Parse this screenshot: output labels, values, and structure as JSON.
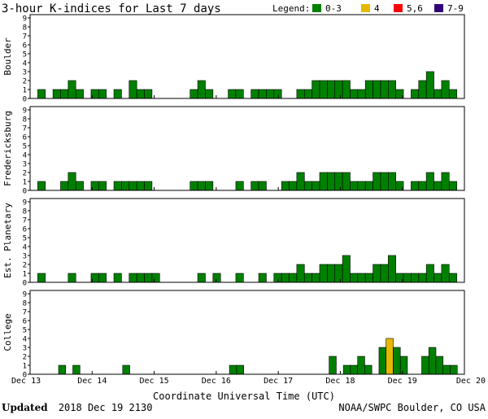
{
  "title": "3-hour K-indices for Last 7 days",
  "legend": {
    "label": "Legend:",
    "items": [
      {
        "label": "0-3",
        "color": "#008000"
      },
      {
        "label": "4",
        "color": "#e6b800"
      },
      {
        "label": "5,6",
        "color": "#ff0000"
      },
      {
        "label": "7-9",
        "color": "#330077"
      }
    ]
  },
  "colors": {
    "low": "#008000",
    "mid": "#e6b800",
    "high": "#ff0000",
    "extreme": "#330077",
    "outline": "#000000"
  },
  "chart_data": {
    "type": "bar",
    "ylim": [
      0,
      9
    ],
    "y_ticks": [
      "0",
      "1",
      "2",
      "3",
      "4",
      "5",
      "6",
      "7",
      "8",
      "9"
    ],
    "x_tick_labels": [
      "Dec 13",
      "Dec 14",
      "Dec 15",
      "Dec 16",
      "Dec 17",
      "Dec 18",
      "Dec 19",
      "Dec 20"
    ],
    "xlabel": "Coordinate Universal Time (UTC)",
    "legend_placement": "top-right",
    "panels": [
      {
        "name": "Boulder",
        "values": [
          0,
          1,
          0,
          1,
          1,
          2,
          1,
          0,
          1,
          1,
          0,
          1,
          0,
          2,
          1,
          1,
          0,
          0,
          0,
          0,
          0,
          1,
          2,
          1,
          0,
          0,
          1,
          1,
          0,
          1,
          1,
          1,
          1,
          0,
          0,
          1,
          1,
          2,
          2,
          2,
          2,
          2,
          1,
          1,
          2,
          2,
          2,
          2,
          1,
          0,
          1,
          2,
          3,
          1,
          2,
          1,
          0
        ]
      },
      {
        "name": "Fredericksburg",
        "values": [
          0,
          1,
          0,
          0,
          1,
          2,
          1,
          0,
          1,
          1,
          0,
          1,
          1,
          1,
          1,
          1,
          0,
          0,
          0,
          0,
          0,
          1,
          1,
          1,
          0,
          0,
          0,
          1,
          0,
          1,
          1,
          0,
          0,
          1,
          1,
          2,
          1,
          1,
          2,
          2,
          2,
          2,
          1,
          1,
          1,
          2,
          2,
          2,
          1,
          0,
          1,
          1,
          2,
          1,
          2,
          1,
          0
        ]
      },
      {
        "name": "Est. Planetary",
        "values": [
          0,
          1,
          0,
          0,
          0,
          1,
          0,
          0,
          1,
          1,
          0,
          1,
          0,
          1,
          1,
          1,
          1,
          0,
          0,
          0,
          0,
          0,
          1,
          0,
          1,
          0,
          0,
          1,
          0,
          0,
          1,
          0,
          1,
          1,
          1,
          2,
          1,
          1,
          2,
          2,
          2,
          3,
          1,
          1,
          1,
          2,
          2,
          3,
          1,
          1,
          1,
          1,
          2,
          1,
          2,
          1,
          0
        ]
      },
      {
        "name": "College",
        "values": [
          0,
          0,
          0,
          0,
          1,
          0,
          1,
          0,
          0,
          0,
          0,
          0,
          0,
          1,
          0,
          0,
          0,
          0,
          0,
          0,
          0,
          0,
          0,
          0,
          0,
          0,
          0,
          0,
          1,
          1,
          0,
          0,
          0,
          0,
          0,
          0,
          0,
          0,
          0,
          0,
          0,
          0,
          2,
          0,
          1,
          1,
          2,
          1,
          0,
          3,
          4,
          3,
          2,
          0,
          0,
          2,
          3,
          2,
          1,
          1,
          0
        ]
      }
    ]
  },
  "footer": {
    "updated_label": "Updated",
    "updated_value": "2018 Dec 19 2130",
    "source": "NOAA/SWPC Boulder, CO USA"
  }
}
